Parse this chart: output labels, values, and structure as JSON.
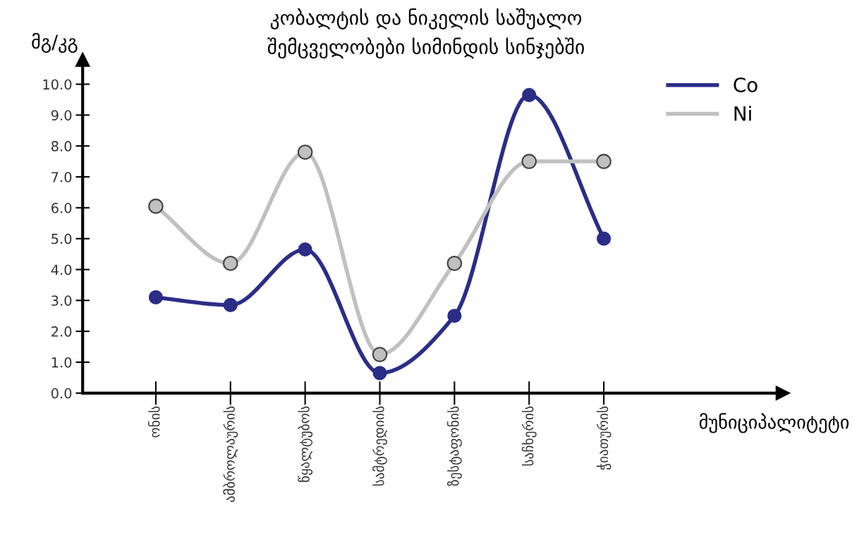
{
  "chart_data": {
    "type": "line",
    "title": "კობალტის და ნიკელის საშუალო\nშემცველობები სიმინდის სინჯებში",
    "xlabel": "მუნიციპალიტეტი",
    "ylabel": "მგ/კგ",
    "categories": [
      "ონის",
      "ამბროლაურის",
      "წყალტუბოს",
      "სამტრედიის",
      "ზესტაფონის",
      "საჩხერის",
      "ჭიათურის"
    ],
    "series": [
      {
        "name": "Co",
        "color": "#2b2d87",
        "values": [
          3.1,
          2.85,
          4.65,
          0.65,
          2.5,
          9.65,
          5.0
        ]
      },
      {
        "name": "Ni",
        "color": "#c0c0c0",
        "values": [
          6.05,
          4.2,
          7.8,
          1.25,
          4.2,
          7.5,
          7.5
        ]
      }
    ],
    "ylim": [
      0,
      10.8
    ],
    "yticks": [
      {
        "value": 0,
        "label": "0.0"
      },
      {
        "value": 1,
        "label": "1.0"
      },
      {
        "value": 2,
        "label": "2.0"
      },
      {
        "value": 3,
        "label": "3.0"
      },
      {
        "value": 4,
        "label": "4.0"
      },
      {
        "value": 5,
        "label": "5.0"
      },
      {
        "value": 6,
        "label": "6.0"
      },
      {
        "value": 7,
        "label": "7.0"
      },
      {
        "value": 8,
        "label": "8.0"
      },
      {
        "value": 9,
        "label": "9.0"
      },
      {
        "value": 10,
        "label": "10.0"
      }
    ],
    "grid": false,
    "legend": "top right",
    "marker": "circle",
    "line_style": "solid"
  }
}
